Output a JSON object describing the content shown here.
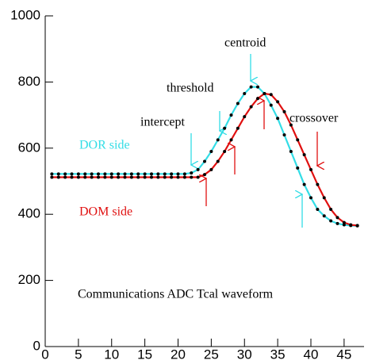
{
  "chart_data": {
    "type": "line",
    "subtitle": "Communications ADC Tcal waveform",
    "annotations": [
      "intercept",
      "threshold",
      "centroid",
      "crossover"
    ],
    "x": [
      1,
      2,
      3,
      4,
      5,
      6,
      7,
      8,
      9,
      10,
      11,
      12,
      13,
      14,
      15,
      16,
      17,
      18,
      19,
      20,
      21,
      22,
      23,
      24,
      25,
      26,
      27,
      28,
      29,
      30,
      31,
      32,
      33,
      34,
      35,
      36,
      37,
      38,
      39,
      40,
      41,
      42,
      43,
      44,
      45,
      46,
      47
    ],
    "series": [
      {
        "name": "DOR side",
        "color": "#33dde6",
        "values": [
          522,
          522,
          522,
          522,
          522,
          522,
          522,
          522,
          522,
          522,
          522,
          522,
          522,
          522,
          522,
          522,
          522,
          522,
          522,
          522,
          522,
          525,
          535,
          560,
          590,
          625,
          660,
          700,
          735,
          765,
          785,
          785,
          765,
          730,
          690,
          640,
          590,
          540,
          490,
          450,
          415,
          395,
          380,
          372,
          368,
          366,
          365
        ]
      },
      {
        "name": "DOM side",
        "color": "#e01010",
        "values": [
          512,
          512,
          512,
          512,
          512,
          512,
          512,
          512,
          512,
          512,
          512,
          512,
          512,
          512,
          512,
          512,
          512,
          512,
          512,
          512,
          512,
          512,
          512,
          520,
          535,
          560,
          590,
          625,
          660,
          695,
          725,
          750,
          765,
          762,
          740,
          710,
          670,
          625,
          580,
          535,
          490,
          450,
          415,
          390,
          375,
          368,
          366
        ]
      }
    ],
    "xlim": [
      0,
      48
    ],
    "ylim": [
      0,
      1000
    ],
    "xticks": [
      0,
      5,
      10,
      15,
      20,
      25,
      30,
      35,
      40,
      45
    ],
    "yticks": [
      0,
      200,
      400,
      600,
      800,
      1000
    ]
  }
}
